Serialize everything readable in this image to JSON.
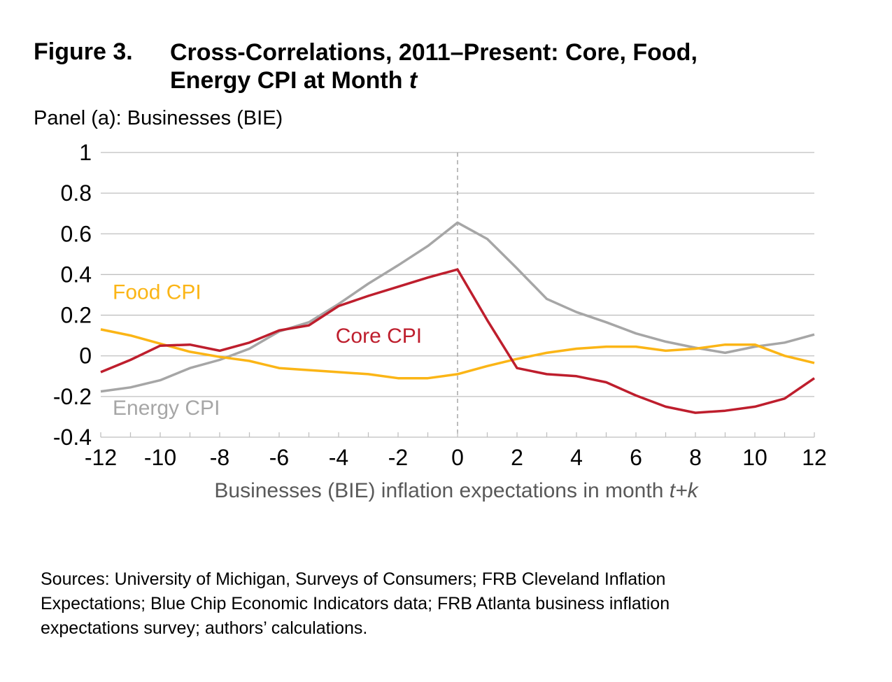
{
  "figure": {
    "label": "Figure 3.",
    "title_line1": "Cross-Correlations, 2011–Present: Core, Food,",
    "title_line2_prefix": "Energy CPI at Month ",
    "title_line2_var": "t"
  },
  "panel_title": "Panel (a): Businesses (BIE)",
  "sources": [
    "Sources: University of Michigan, Surveys of Consumers; FRB Cleveland Inflation",
    "Expectations; Blue Chip Economic Indicators data; FRB Atlanta business inflation",
    "expectations survey; authors’ calculations."
  ],
  "chart_data": {
    "type": "line",
    "x": [
      -12,
      -11,
      -10,
      -9,
      -8,
      -7,
      -6,
      -5,
      -4,
      -3,
      -2,
      -1,
      0,
      1,
      2,
      3,
      4,
      5,
      6,
      7,
      8,
      9,
      10,
      11,
      12
    ],
    "xticks": [
      -12,
      -10,
      -8,
      -6,
      -4,
      -2,
      0,
      2,
      4,
      6,
      8,
      10,
      12
    ],
    "yticks": [
      -0.4,
      -0.2,
      0,
      0.2,
      0.4,
      0.6,
      0.8,
      1
    ],
    "ytick_labels": [
      "-0.4",
      "-0.2",
      "0",
      "0.2",
      "0.4",
      "0.6",
      "0.8",
      "1"
    ],
    "xlim": [
      -12,
      12
    ],
    "ylim": [
      -0.4,
      1
    ],
    "xlabel": "Businesses (BIE) inflation expectations in month ",
    "xlabel_var": "t+k",
    "grid": "horizontal",
    "reference_line_x": 0,
    "series": [
      {
        "name": "Core CPI",
        "color": "#be1e2d",
        "values": [
          -0.08,
          -0.02,
          0.05,
          0.055,
          0.025,
          0.065,
          0.125,
          0.15,
          0.245,
          0.295,
          0.34,
          0.385,
          0.425,
          0.175,
          -0.06,
          -0.09,
          -0.1,
          -0.13,
          -0.195,
          -0.25,
          -0.28,
          -0.27,
          -0.25,
          -0.21,
          -0.11
        ]
      },
      {
        "name": "Food CPI",
        "color": "#fbb516",
        "values": [
          0.13,
          0.1,
          0.06,
          0.02,
          -0.005,
          -0.025,
          -0.06,
          -0.07,
          -0.08,
          -0.09,
          -0.11,
          -0.11,
          -0.09,
          -0.05,
          -0.015,
          0.015,
          0.035,
          0.045,
          0.045,
          0.025,
          0.035,
          0.055,
          0.055,
          0.0,
          -0.035
        ]
      },
      {
        "name": "Energy CPI",
        "color": "#a6a6a6",
        "values": [
          -0.175,
          -0.155,
          -0.12,
          -0.06,
          -0.02,
          0.035,
          0.12,
          0.165,
          0.255,
          0.355,
          0.445,
          0.54,
          0.655,
          0.575,
          0.43,
          0.28,
          0.215,
          0.165,
          0.11,
          0.07,
          0.04,
          0.015,
          0.045,
          0.065,
          0.105
        ]
      }
    ],
    "labels": [
      {
        "series": "Food CPI",
        "text": "Food CPI",
        "x": -11.6,
        "y": 0.28
      },
      {
        "series": "Core CPI",
        "text": "Core CPI",
        "x": -4.1,
        "y": 0.065
      },
      {
        "series": "Energy CPI",
        "text": "Energy CPI",
        "x": -11.6,
        "y": -0.29
      }
    ]
  }
}
